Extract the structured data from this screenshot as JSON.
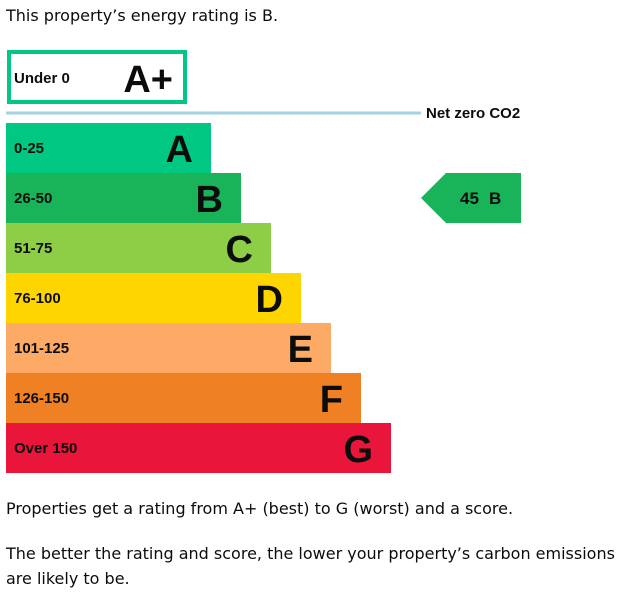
{
  "intro_text": "This property’s energy rating is B.",
  "chart_data": {
    "type": "bar",
    "title": "",
    "bands": [
      {
        "letter": "A+",
        "range": "Under 0",
        "color": "#00c781"
      },
      {
        "letter": "A",
        "range": "0-25",
        "color": "#00c781"
      },
      {
        "letter": "B",
        "range": "26-50",
        "color": "#19b459"
      },
      {
        "letter": "C",
        "range": "51-75",
        "color": "#8dce46"
      },
      {
        "letter": "D",
        "range": "76-100",
        "color": "#ffd500"
      },
      {
        "letter": "E",
        "range": "101-125",
        "color": "#fcaa65"
      },
      {
        "letter": "F",
        "range": "126-150",
        "color": "#ef8023"
      },
      {
        "letter": "G",
        "range": "Over 150",
        "color": "#e9153b"
      }
    ],
    "net_zero_label": "Net zero CO2",
    "net_zero_line_color": "#a6d3e0",
    "current_rating": {
      "score": 45,
      "letter": "B",
      "color": "#19b459"
    }
  },
  "paragraphs": [
    "Properties get a rating from A+ (best) to G (worst) and a score.",
    "The better the rating and score, the lower your property’s carbon emissions are likely to be."
  ]
}
